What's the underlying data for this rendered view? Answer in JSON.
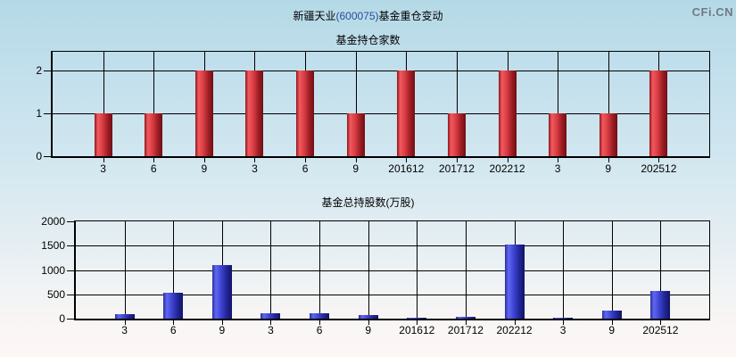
{
  "header": {
    "title_prefix": "新疆天业",
    "title_code": "(600075)",
    "title_suffix": "基金重仓变动",
    "watermark": "CFi.CN"
  },
  "colors": {
    "background_top": "#b4d9e6",
    "background_bottom": "#fdf7f6",
    "axis": "#000000",
    "bar_red": "#d93d44",
    "bar_blue": "#3d43cf",
    "title_code_blue": "#2b4a9b",
    "watermark_gray": "#6f7b85"
  },
  "chart_data": [
    {
      "type": "bar",
      "title": "基金持仓家数",
      "categories": [
        "3",
        "6",
        "9",
        "3",
        "6",
        "9",
        "201612",
        "201712",
        "202212",
        "3",
        "9",
        "202512"
      ],
      "values": [
        1,
        1,
        2,
        2,
        2,
        1,
        2,
        1,
        2,
        1,
        1,
        2
      ],
      "yticks": [
        0,
        1,
        2
      ],
      "ylim": [
        0,
        2.44
      ],
      "xlabel": "",
      "ylabel": "",
      "grid": true,
      "legend_position": "none",
      "bar_style": "red"
    },
    {
      "type": "bar",
      "title": "基金总持股数(万股)",
      "categories": [
        "3",
        "6",
        "9",
        "3",
        "6",
        "9",
        "201612",
        "201712",
        "202212",
        "3",
        "9",
        "202512"
      ],
      "values": [
        90,
        540,
        1100,
        110,
        110,
        70,
        25,
        30,
        1520,
        25,
        170,
        570
      ],
      "yticks": [
        0,
        500,
        1000,
        1500,
        2000
      ],
      "ylim": [
        0,
        2000
      ],
      "xlabel": "",
      "ylabel": "",
      "grid": true,
      "legend_position": "none",
      "bar_style": "blue"
    }
  ]
}
